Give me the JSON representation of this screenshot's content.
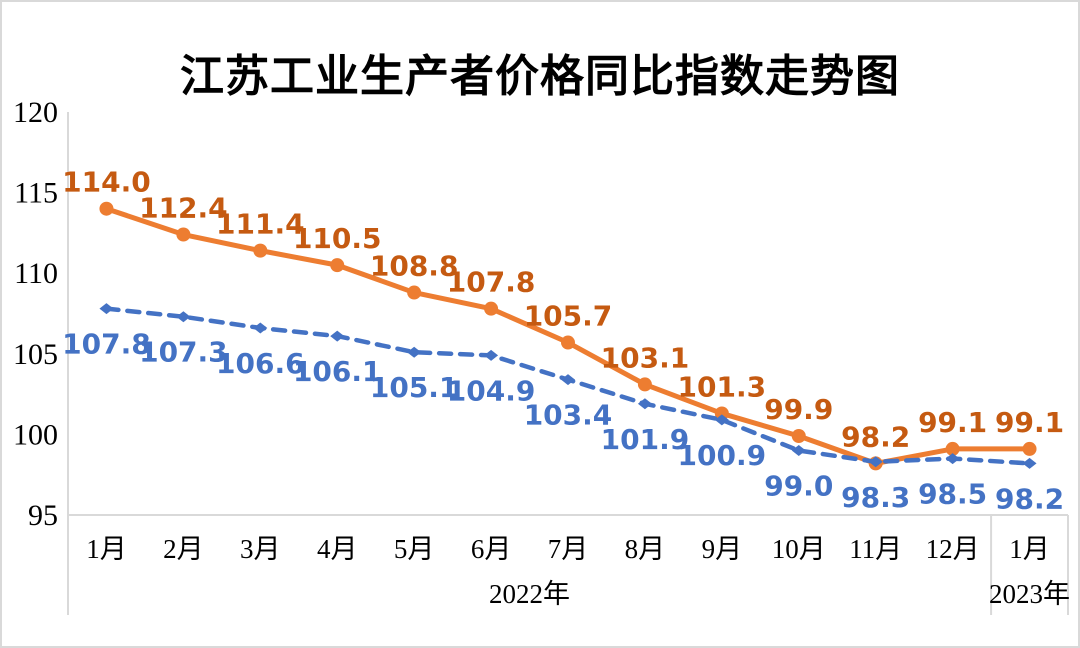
{
  "chart_data": {
    "type": "line",
    "title": "江苏工业生产者价格同比指数走势图",
    "xlabel": "",
    "ylabel": "",
    "categories": [
      "1月",
      "2月",
      "3月",
      "4月",
      "5月",
      "6月",
      "7月",
      "8月",
      "9月",
      "10月",
      "11月",
      "12月",
      "1月"
    ],
    "x_groups": [
      {
        "label": "2022年",
        "from": 0,
        "to": 11
      },
      {
        "label": "2023年",
        "from": 12,
        "to": 12
      }
    ],
    "y_axis": {
      "min": 95,
      "max": 120,
      "ticks": [
        120,
        115,
        110,
        105,
        100,
        95
      ]
    },
    "grid": false,
    "legend_position": "none",
    "data_label_decimals": 1,
    "series": [
      {
        "id": "orange-solid",
        "line_style": "solid",
        "marker": "circle",
        "color": "#ED7D31",
        "label_color": "#C55A11",
        "values": [
          114.0,
          112.4,
          111.4,
          110.5,
          108.8,
          107.8,
          105.7,
          103.1,
          101.3,
          99.9,
          98.2,
          99.1,
          99.1
        ]
      },
      {
        "id": "blue-dashed",
        "line_style": "dashed",
        "marker": "diamond",
        "color": "#4472C4",
        "label_color": "#4472C4",
        "values": [
          107.8,
          107.3,
          106.6,
          106.1,
          105.1,
          104.9,
          103.4,
          101.9,
          100.9,
          99.0,
          98.3,
          98.5,
          98.2
        ]
      }
    ],
    "style": {
      "axis_line_color": "#D9D9D9",
      "background": "#FFFFFF",
      "frame_border_color": "#D9D9D9"
    }
  }
}
